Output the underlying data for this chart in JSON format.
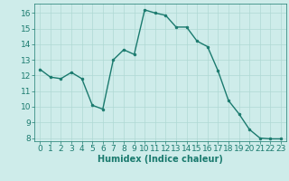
{
  "x": [
    0,
    1,
    2,
    3,
    4,
    5,
    6,
    7,
    8,
    9,
    10,
    11,
    12,
    13,
    14,
    15,
    16,
    17,
    18,
    19,
    20,
    21,
    22,
    23
  ],
  "y": [
    12.4,
    11.9,
    11.8,
    12.2,
    11.8,
    10.1,
    9.85,
    13.0,
    13.65,
    13.35,
    16.2,
    16.0,
    15.85,
    15.1,
    15.1,
    14.2,
    13.85,
    12.3,
    10.4,
    9.55,
    8.55,
    8.0,
    7.95,
    7.95
  ],
  "line_color": "#1a7a6e",
  "marker_color": "#1a7a6e",
  "bg_color": "#ceecea",
  "grid_color": "#afd8d4",
  "xlabel": "Humidex (Indice chaleur)",
  "xlim": [
    -0.5,
    23.5
  ],
  "ylim": [
    7.8,
    16.6
  ],
  "yticks": [
    8,
    9,
    10,
    11,
    12,
    13,
    14,
    15,
    16
  ],
  "xticks": [
    0,
    1,
    2,
    3,
    4,
    5,
    6,
    7,
    8,
    9,
    10,
    11,
    12,
    13,
    14,
    15,
    16,
    17,
    18,
    19,
    20,
    21,
    22,
    23
  ],
  "xtick_labels": [
    "0",
    "1",
    "2",
    "3",
    "4",
    "5",
    "6",
    "7",
    "8",
    "9",
    "10",
    "11",
    "12",
    "13",
    "14",
    "15",
    "16",
    "17",
    "18",
    "19",
    "20",
    "21",
    "22",
    "23"
  ],
  "xlabel_fontsize": 7,
  "tick_fontsize": 6.5
}
